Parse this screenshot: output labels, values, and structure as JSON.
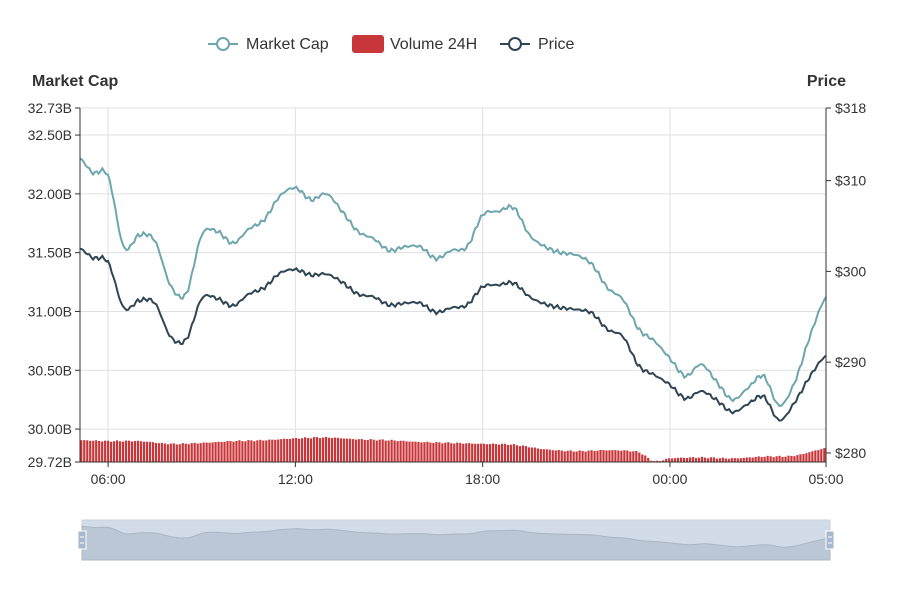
{
  "chart_data": {
    "type": "line",
    "legend": {
      "placement": "top-center",
      "items": [
        {
          "name": "Market Cap",
          "symbol": "line-circle",
          "color": "#6ea6ae"
        },
        {
          "name": "Volume 24H",
          "symbol": "rect",
          "color": "#c8363a"
        },
        {
          "name": "Price",
          "symbol": "line-circle",
          "color": "#2f4554"
        }
      ]
    },
    "y_left": {
      "title": "Market Cap",
      "min": 29.72,
      "max": 32.73,
      "ticks": [
        29.72,
        30.0,
        30.5,
        31.0,
        31.5,
        32.0,
        32.5,
        32.73
      ],
      "tick_labels": [
        "29.72B",
        "30.00B",
        "30.50B",
        "31.00B",
        "31.50B",
        "32.00B",
        "32.50B",
        "32.73B"
      ]
    },
    "y_right": {
      "title": "Price",
      "min": 279,
      "max": 318,
      "ticks": [
        280,
        290,
        300,
        310,
        318
      ],
      "tick_labels": [
        "$280",
        "$290",
        "$300",
        "$310",
        "$318"
      ]
    },
    "x_axis": {
      "min_hours": 5.1,
      "max_hours": 29.0,
      "ticks_hours": [
        6,
        12,
        18,
        24,
        29
      ],
      "tick_labels": [
        "06:00",
        "12:00",
        "18:00",
        "00:00",
        "05:00"
      ],
      "grid": true
    },
    "series": [
      {
        "name": "Market Cap",
        "color": "#6ea6ae",
        "x": [
          5.1,
          5.5,
          6.0,
          6.5,
          7.0,
          7.5,
          8.0,
          8.5,
          9.0,
          9.5,
          10.0,
          10.5,
          11.0,
          11.5,
          12.0,
          12.5,
          13.0,
          13.5,
          14.0,
          14.5,
          15.0,
          15.5,
          16.0,
          16.5,
          17.0,
          17.5,
          18.0,
          18.5,
          19.0,
          19.5,
          20.0,
          20.5,
          21.0,
          21.5,
          22.0,
          22.5,
          23.0,
          23.5,
          24.0,
          24.5,
          25.0,
          25.5,
          26.0,
          26.5,
          27.0,
          27.5,
          28.0,
          28.5,
          29.0
        ],
        "values": [
          32.3,
          32.18,
          32.15,
          31.55,
          31.65,
          31.6,
          31.22,
          31.15,
          31.65,
          31.68,
          31.58,
          31.7,
          31.78,
          31.98,
          32.05,
          31.95,
          32.0,
          31.85,
          31.68,
          31.62,
          31.52,
          31.55,
          31.55,
          31.45,
          31.52,
          31.55,
          31.82,
          31.85,
          31.88,
          31.65,
          31.55,
          31.5,
          31.48,
          31.4,
          31.2,
          31.1,
          30.85,
          30.75,
          30.6,
          30.45,
          30.55,
          30.4,
          30.25,
          30.35,
          30.45,
          30.2,
          30.4,
          30.8,
          31.12
        ]
      },
      {
        "name": "Price",
        "color": "#2f4554",
        "x": [
          5.1,
          5.5,
          6.0,
          6.5,
          7.0,
          7.5,
          8.0,
          8.5,
          9.0,
          9.5,
          10.0,
          10.5,
          11.0,
          11.5,
          12.0,
          12.5,
          13.0,
          13.5,
          14.0,
          14.5,
          15.0,
          15.5,
          16.0,
          16.5,
          17.0,
          17.5,
          18.0,
          18.5,
          19.0,
          19.5,
          20.0,
          20.5,
          21.0,
          21.5,
          22.0,
          22.5,
          23.0,
          23.5,
          24.0,
          24.5,
          25.0,
          25.5,
          26.0,
          26.5,
          27.0,
          27.5,
          28.0,
          28.5,
          29.0
        ],
        "values": [
          302.5,
          301.5,
          301.0,
          296.0,
          296.8,
          296.5,
          292.8,
          292.5,
          297.0,
          297.0,
          296.2,
          297.5,
          298.2,
          299.8,
          300.2,
          299.6,
          299.7,
          298.8,
          297.5,
          297.2,
          296.3,
          296.5,
          296.5,
          295.5,
          296.0,
          296.3,
          298.3,
          298.5,
          298.7,
          297.2,
          296.4,
          296.0,
          295.8,
          295.4,
          293.6,
          292.8,
          289.6,
          288.6,
          287.5,
          286.0,
          286.8,
          285.8,
          284.5,
          285.4,
          286.2,
          283.6,
          285.6,
          288.5,
          290.7
        ]
      },
      {
        "name": "Volume 24H",
        "color": "#c8363a",
        "x": [
          5.1,
          6.0,
          7.0,
          8.0,
          9.0,
          10.0,
          11.0,
          12.0,
          13.0,
          14.0,
          15.0,
          16.0,
          17.0,
          18.0,
          19.0,
          20.0,
          21.0,
          22.0,
          23.0,
          23.5,
          24.0,
          25.0,
          26.0,
          27.0,
          28.0,
          29.0
        ],
        "values": [
          281.4,
          281.3,
          281.3,
          281.0,
          281.1,
          281.3,
          281.4,
          281.6,
          281.7,
          281.5,
          281.4,
          281.2,
          281.1,
          281.0,
          280.9,
          280.4,
          280.2,
          280.3,
          280.1,
          279.1,
          279.4,
          279.5,
          279.4,
          279.6,
          279.7,
          280.5
        ]
      }
    ],
    "minimap": {
      "series": "Market Cap"
    }
  }
}
